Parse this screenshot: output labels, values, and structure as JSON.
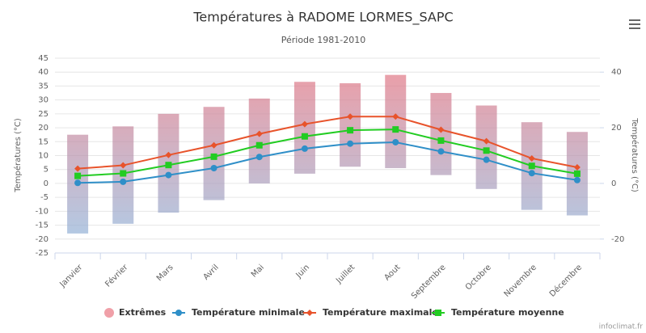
{
  "chart_data": {
    "type": "climate",
    "title": "Températures à RADOME LORMES_SAPC",
    "subtitle": "Période 1981-2010",
    "y_label": "Températures (°C)",
    "y2_label": "Températures (°C)",
    "credit": "infoclimat.fr",
    "categories": [
      "Janvier",
      "Février",
      "Mars",
      "Avril",
      "Mai",
      "Juin",
      "Juillet",
      "Aout",
      "Septembre",
      "Octobre",
      "Novembre",
      "Décembre"
    ],
    "ylim": [
      -25,
      45
    ],
    "yticks": [
      -25,
      -20,
      -15,
      -10,
      -5,
      0,
      5,
      10,
      15,
      20,
      25,
      30,
      35,
      40,
      45
    ],
    "y2lim": [
      -25,
      45
    ],
    "y2ticks": [
      -20,
      0,
      20,
      40
    ],
    "grid": true,
    "series": [
      {
        "name": "Extrêmes",
        "color": "#f0a0a8",
        "high": [
          17.5,
          20.5,
          25,
          27.5,
          30.5,
          36.5,
          36,
          39,
          32.5,
          28,
          22,
          18.5
        ],
        "low": [
          -18,
          -14.5,
          -10.5,
          -6,
          0,
          3.5,
          6,
          5.5,
          3,
          -2,
          -9.5,
          -11.5
        ]
      },
      {
        "name": "Température minimale",
        "color": "#2f8fc8",
        "marker": "circle",
        "values": [
          0.2,
          0.6,
          3,
          5.5,
          9.5,
          12.5,
          14.3,
          14.8,
          11.5,
          8.5,
          3.7,
          1.2
        ]
      },
      {
        "name": "Température maximale",
        "color": "#e8532b",
        "marker": "diamond",
        "values": [
          5.3,
          6.5,
          10.2,
          13.7,
          17.8,
          21.3,
          24,
          24,
          19.3,
          15.2,
          9,
          5.8
        ]
      },
      {
        "name": "Température moyenne",
        "color": "#22cc22",
        "marker": "square",
        "values": [
          2.7,
          3.6,
          6.6,
          9.6,
          13.7,
          16.9,
          19.1,
          19.4,
          15.4,
          11.8,
          6.3,
          3.5
        ]
      }
    ]
  }
}
